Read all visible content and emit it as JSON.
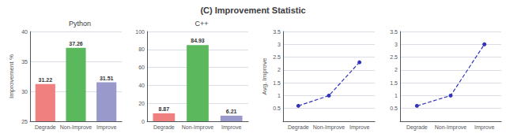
{
  "title": "(C) Improvement Statistic",
  "chart_data": [
    {
      "type": "bar",
      "title": "Python",
      "categories": [
        "Degrade",
        "Non-Improve",
        "Improve"
      ],
      "values": [
        31.22,
        37.26,
        31.51
      ],
      "colors": [
        "#f08080",
        "#5cb85c",
        "#9999cc"
      ],
      "ylabel": "Improvement %",
      "ylim": [
        25,
        40
      ],
      "yticks": [
        25,
        30,
        35,
        40
      ],
      "grid": true,
      "data_labels": true
    },
    {
      "type": "bar",
      "title": "C++",
      "categories": [
        "Degrade",
        "Non-Improve",
        "Improve"
      ],
      "values": [
        8.87,
        84.93,
        6.21
      ],
      "colors": [
        "#f08080",
        "#5cb85c",
        "#9999cc"
      ],
      "ylim": [
        0,
        100
      ],
      "yticks": [
        0,
        20,
        40,
        60,
        80,
        100
      ],
      "grid": true,
      "data_labels": true
    },
    {
      "type": "line",
      "categories": [
        "Degrade",
        "Non-Improve",
        "Improve"
      ],
      "values": [
        0.6,
        1.0,
        2.3
      ],
      "color": "#3333bb",
      "marker": "circle",
      "line_style": "dashed",
      "ylabel": "Avg. Improve",
      "ylim": [
        0,
        3.5
      ],
      "yticks": [
        0.5,
        1.0,
        1.5,
        2.0,
        2.5,
        3.0,
        3.5
      ],
      "grid": true
    },
    {
      "type": "line",
      "categories": [
        "Degrade",
        "Non-Improve",
        "Improve"
      ],
      "values": [
        0.6,
        1.0,
        3.0
      ],
      "color": "#3333bb",
      "marker": "circle",
      "line_style": "dashed",
      "ylim": [
        0,
        3.5
      ],
      "yticks": [
        0.5,
        1.0,
        1.5,
        2.0,
        2.5,
        3.0,
        3.5
      ],
      "grid": true
    }
  ]
}
